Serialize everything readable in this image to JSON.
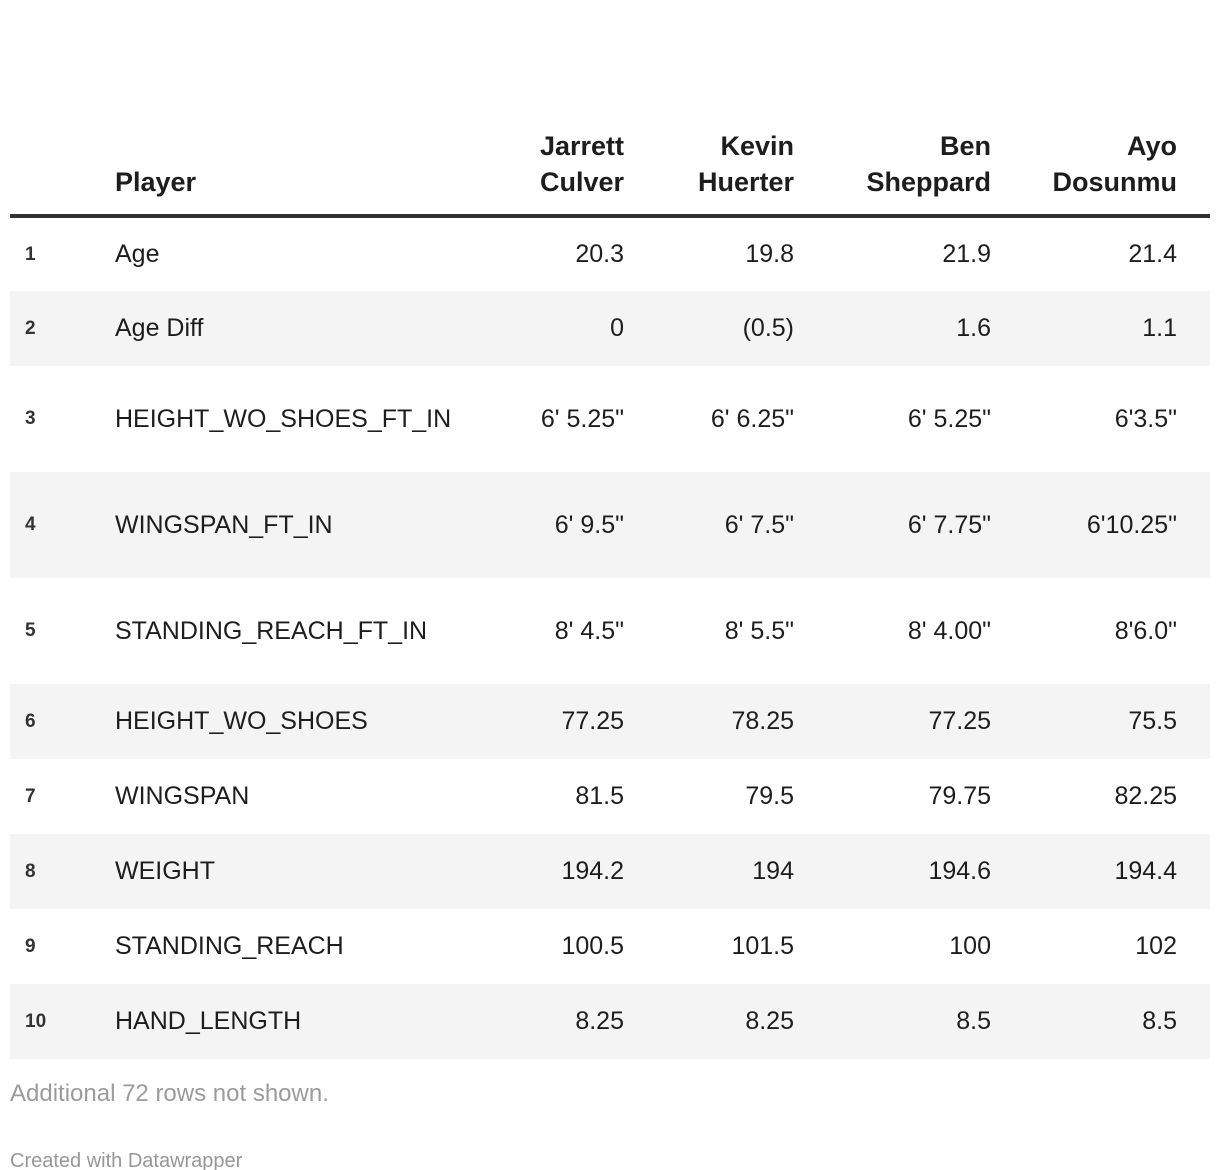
{
  "chart_data": {
    "type": "table",
    "columns": [
      "Player",
      "Jarrett Culver",
      "Kevin Huerter",
      "Ben Sheppard",
      "Ayo Dosunmu"
    ],
    "rows": [
      [
        "Age",
        "20.3",
        "19.8",
        "21.9",
        "21.4"
      ],
      [
        "Age Diff",
        "0",
        "(0.5)",
        "1.6",
        "1.1"
      ],
      [
        "HEIGHT_WO_SHOES_FT_IN",
        "6' 5.25\"",
        "6' 6.25\"",
        "6' 5.25\"",
        "6'3.5\""
      ],
      [
        "WINGSPAN_FT_IN",
        "6' 9.5\"",
        "6' 7.5\"",
        "6' 7.75\"",
        "6'10.25\""
      ],
      [
        "STANDING_REACH_FT_IN",
        "8' 4.5\"",
        "8' 5.5\"",
        "8' 4.00\"",
        "8'6.0\""
      ],
      [
        "HEIGHT_WO_SHOES",
        "77.25",
        "78.25",
        "77.25",
        "75.5"
      ],
      [
        "WINGSPAN",
        "81.5",
        "79.5",
        "79.75",
        "82.25"
      ],
      [
        "WEIGHT",
        "194.2",
        "194",
        "194.6",
        "194.4"
      ],
      [
        "STANDING_REACH",
        "100.5",
        "101.5",
        "100",
        "102"
      ],
      [
        "HAND_LENGTH",
        "8.25",
        "8.25",
        "8.5",
        "8.5"
      ]
    ],
    "note": "Additional 72 rows not shown.",
    "credit": "Created with Datawrapper",
    "legend_position": "none",
    "grid": "striped-rows"
  },
  "table": {
    "header": {
      "player_label": "Player",
      "columns": [
        "Jarrett\nCulver",
        "Kevin\nHuerter",
        "Ben\nSheppard",
        "Ayo\nDosunmu"
      ]
    },
    "rows": [
      {
        "num": "1",
        "label": "Age",
        "values": [
          "20.3",
          "19.8",
          "21.9",
          "21.4"
        ]
      },
      {
        "num": "2",
        "label": "Age Diff",
        "values": [
          "0",
          "(0.5)",
          "1.6",
          "1.1"
        ]
      },
      {
        "num": "3",
        "label": "HEIGHT_WO_SHOES_FT_IN",
        "values": [
          "6' 5.25\"",
          "6' 6.25\"",
          "6' 5.25\"",
          "6'3.5\""
        ]
      },
      {
        "num": "4",
        "label": "WINGSPAN_FT_IN",
        "values": [
          "6' 9.5\"",
          "6' 7.5\"",
          "6' 7.75\"",
          "6'10.25\""
        ]
      },
      {
        "num": "5",
        "label": "STANDING_REACH_FT_IN",
        "values": [
          "8' 4.5\"",
          "8' 5.5\"",
          "8' 4.00\"",
          "8'6.0\""
        ]
      },
      {
        "num": "6",
        "label": "HEIGHT_WO_SHOES",
        "values": [
          "77.25",
          "78.25",
          "77.25",
          "75.5"
        ]
      },
      {
        "num": "7",
        "label": "WINGSPAN",
        "values": [
          "81.5",
          "79.5",
          "79.75",
          "82.25"
        ]
      },
      {
        "num": "8",
        "label": "WEIGHT",
        "values": [
          "194.2",
          "194",
          "194.6",
          "194.4"
        ]
      },
      {
        "num": "9",
        "label": "STANDING_REACH",
        "values": [
          "100.5",
          "101.5",
          "100",
          "102"
        ]
      },
      {
        "num": "10",
        "label": "HAND_LENGTH",
        "values": [
          "8.25",
          "8.25",
          "8.5",
          "8.5"
        ]
      }
    ]
  },
  "footer": {
    "note": "Additional 72 rows not shown.",
    "credit": "Created with Datawrapper"
  },
  "colors": {
    "stripe": "#f4f4f4",
    "header_rule": "#333333",
    "text": "#1d1d1d",
    "muted": "#9b9b9b"
  }
}
